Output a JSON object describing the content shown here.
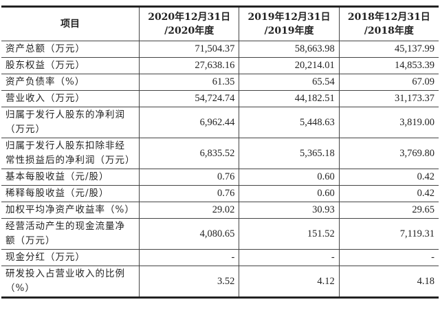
{
  "table": {
    "headers": [
      "项目",
      "2020年12月31日 /2020年度",
      "2019年12月31日 /2019年度",
      "2018年12月31日 /2018年度"
    ],
    "rows": [
      {
        "label": "资产总额（万元）",
        "values": [
          "71,504.37",
          "58,663.98",
          "45,137.99"
        ]
      },
      {
        "label": "股东权益（万元）",
        "values": [
          "27,638.16",
          "20,214.01",
          "14,853.39"
        ]
      },
      {
        "label": "资产负债率（%）",
        "values": [
          "61.35",
          "65.54",
          "67.09"
        ]
      },
      {
        "label": "营业收入（万元）",
        "values": [
          "54,724.74",
          "44,182.51",
          "31,173.37"
        ]
      },
      {
        "label": "归属于发行人股东的净利润（万元）",
        "values": [
          "6,962.44",
          "5,448.63",
          "3,819.00"
        ]
      },
      {
        "label": "归属于发行人股东扣除非经常性损益后的净利润（万元）",
        "values": [
          "6,835.52",
          "5,365.18",
          "3,769.80"
        ]
      },
      {
        "label": "基本每股收益（元/股）",
        "values": [
          "0.76",
          "0.60",
          "0.42"
        ]
      },
      {
        "label": "稀释每股收益（元/股）",
        "values": [
          "0.76",
          "0.60",
          "0.42"
        ]
      },
      {
        "label": "加权平均净资产收益率（%）",
        "values": [
          "29.02",
          "30.93",
          "29.65"
        ]
      },
      {
        "label": "经营活动产生的现金流量净额（万元）",
        "values": [
          "4,080.65",
          "151.52",
          "7,119.31"
        ]
      },
      {
        "label": "现金分红（万元）",
        "values": [
          "-",
          "-",
          "-"
        ]
      },
      {
        "label": "研发投入占营业收入的比例（%）",
        "values": [
          "3.52",
          "4.12",
          "4.18"
        ]
      }
    ]
  }
}
